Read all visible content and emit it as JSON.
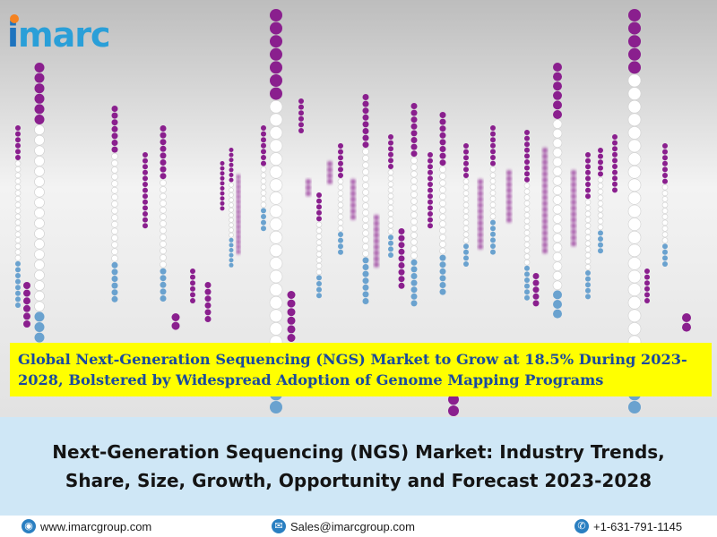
{
  "brand": {
    "logo_text_i": "i",
    "logo_text_rest": "marc",
    "colors": {
      "primary": "#1e73be",
      "accent": "#f58220",
      "highlight": "#ffff00"
    }
  },
  "headline": {
    "line1": "Global Next-Generation Sequencing (NGS) Market to Grow at 18.5% During 2023-",
    "line2": "2028, Bolstered by Widespread Adoption of Genome Mapping Programs"
  },
  "report": {
    "title_line1": "Next-Generation Sequencing (NGS) Market: Industry Trends,",
    "title_line2": "Share, Size,  Growth, Opportunity and Forecast 2023-2028"
  },
  "contact": {
    "website": "www.imarcgroup.com",
    "email": "Sales@imarcgroup.com",
    "phone": "+1-631-791-1145",
    "icons": {
      "website": "globe-icon",
      "email": "mail-icon",
      "phone": "phone-icon"
    }
  }
}
